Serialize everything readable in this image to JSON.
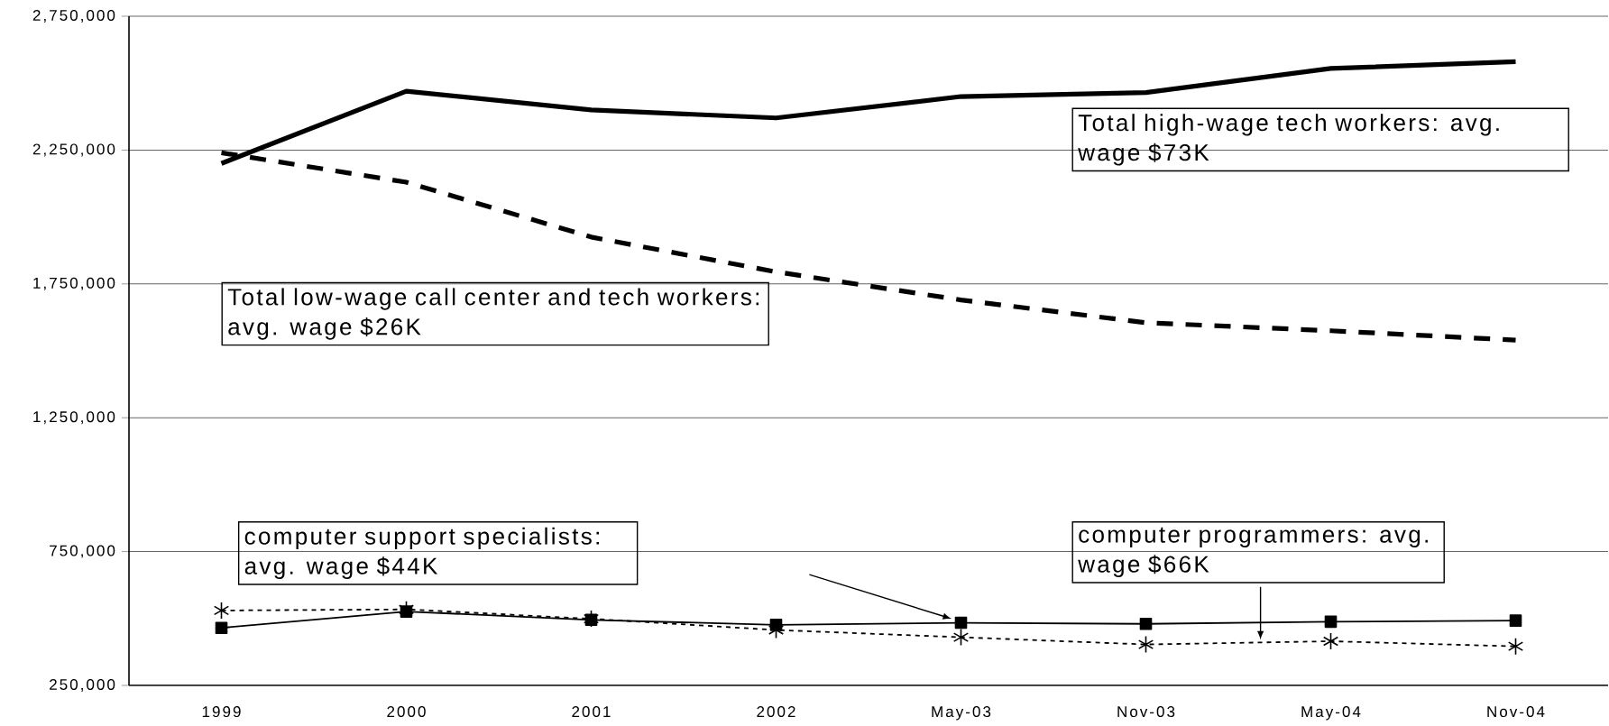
{
  "chart_data": {
    "type": "line",
    "categories": [
      "1999",
      "2000",
      "2001",
      "2002",
      "May-03",
      "Nov-03",
      "May-04",
      "Nov-04"
    ],
    "series": [
      {
        "name": "Total high-wage tech workers:  avg. wage $73K",
        "color": "#000000",
        "line_style": "solid",
        "marker": "none",
        "values": [
          2200000,
          2470000,
          2400000,
          2370000,
          2450000,
          2465000,
          2555000,
          2580000
        ]
      },
      {
        "name": "Total low-wage call center and tech workers:  avg. wage $26K",
        "color": "#000000",
        "line_style": "dashed",
        "marker": "none",
        "values": [
          2240000,
          2130000,
          1925000,
          1795000,
          1690000,
          1605000,
          1575000,
          1540000
        ]
      },
      {
        "name": "computer support specialists: avg. wage $44K",
        "color": "#000000",
        "line_style": "solid",
        "marker": "square",
        "values": [
          465000,
          526000,
          495000,
          476000,
          484000,
          480000,
          488000,
          492000
        ]
      },
      {
        "name": "computer programmers: avg. wage $66K",
        "color": "#000000",
        "line_style": "dotted",
        "marker": "cross",
        "values": [
          530000,
          534000,
          499000,
          457000,
          430000,
          403000,
          415000,
          396000
        ]
      }
    ],
    "ylim": [
      250000,
      2750000
    ],
    "yticks": [
      {
        "value": 250000,
        "label": "250,000"
      },
      {
        "value": 750000,
        "label": "750,000"
      },
      {
        "value": 1250000,
        "label": "1,250,000"
      },
      {
        "value": 1750000,
        "label": "1,750,000"
      },
      {
        "value": 2250000,
        "label": "2,250,000"
      },
      {
        "value": 2750000,
        "label": "2,750,000"
      }
    ],
    "grid": "y"
  }
}
